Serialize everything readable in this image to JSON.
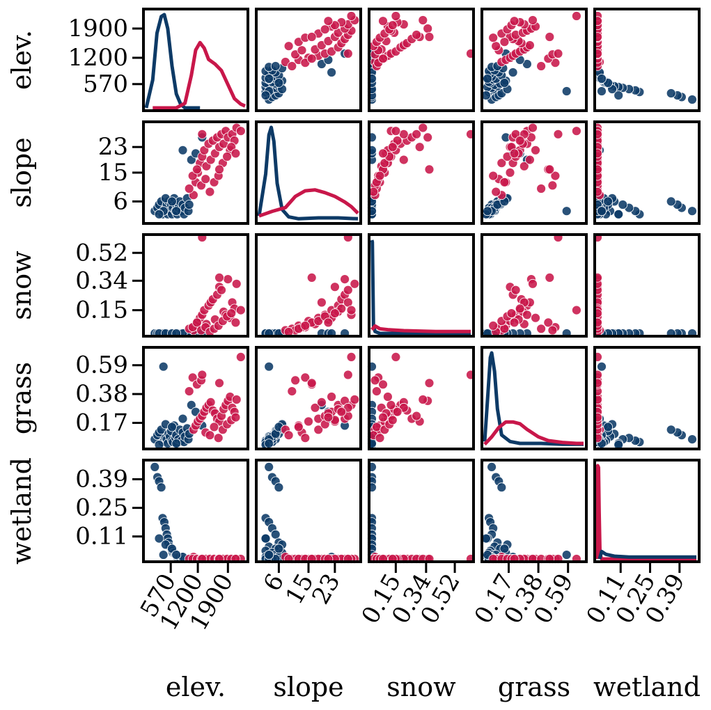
{
  "chart_data": {
    "type": "scatter",
    "variables": [
      "elev.",
      "slope",
      "snow",
      "grass",
      "wetland"
    ],
    "ranges": [
      [
        0,
        2300
      ],
      [
        0,
        30
      ],
      [
        0,
        0.62
      ],
      [
        0,
        0.7
      ],
      [
        0,
        0.47
      ]
    ],
    "ticks": [
      {
        "values": [
          570,
          1200,
          1900
        ],
        "labels": [
          "570",
          "1200",
          "1900"
        ]
      },
      {
        "values": [
          6,
          15,
          23
        ],
        "labels": [
          "6",
          "15",
          "23"
        ]
      },
      {
        "values": [
          0.15,
          0.34,
          0.52
        ],
        "labels": [
          "0.15",
          "0.34",
          "0.52"
        ]
      },
      {
        "values": [
          0.17,
          0.38,
          0.59
        ],
        "labels": [
          "0.17",
          "0.38",
          "0.59"
        ]
      },
      {
        "values": [
          0.11,
          0.25,
          0.39
        ],
        "labels": [
          "0.11",
          "0.25",
          "0.39"
        ]
      }
    ],
    "colors": {
      "group_a": "#0d3a66",
      "group_b": "#c8174a"
    },
    "groups": [
      {
        "color_key": "group_a",
        "points": [
          [
            200,
            3,
            0,
            0.05,
            0.45
          ],
          [
            260,
            4,
            0,
            0.08,
            0.4
          ],
          [
            300,
            5,
            0,
            0.1,
            0.38
          ],
          [
            350,
            6,
            0,
            0.12,
            0.35
          ],
          [
            380,
            2,
            0,
            0.03,
            0.2
          ],
          [
            420,
            3,
            0,
            0.04,
            0.18
          ],
          [
            450,
            4,
            0,
            0.06,
            0.15
          ],
          [
            480,
            5,
            0,
            0.05,
            0.12
          ],
          [
            500,
            2,
            0,
            0.02,
            0.1
          ],
          [
            520,
            6,
            0,
            0.09,
            0.08
          ],
          [
            550,
            3,
            0,
            0.07,
            0.06
          ],
          [
            580,
            5,
            0,
            0.11,
            0.05
          ],
          [
            600,
            2,
            0,
            0.04,
            0.04
          ],
          [
            620,
            4,
            0,
            0.03,
            0.03
          ],
          [
            650,
            7,
            0,
            0.15,
            0.03
          ],
          [
            680,
            3,
            0,
            0.06,
            0.02
          ],
          [
            700,
            5,
            0,
            0.08,
            0.02
          ],
          [
            720,
            2,
            0,
            0.02,
            0.01
          ],
          [
            750,
            4,
            0,
            0.05,
            0.01
          ],
          [
            780,
            6,
            0,
            0.12,
            0.01
          ],
          [
            820,
            3,
            0,
            0.04,
            0.01
          ],
          [
            850,
            5,
            0,
            0.1,
            0.0
          ],
          [
            880,
            2,
            0,
            0.03,
            0.0
          ],
          [
            900,
            4,
            0,
            0.07,
            0.0
          ],
          [
            950,
            7,
            0,
            0.13,
            0.0
          ],
          [
            980,
            3,
            0,
            0.05,
            0.0
          ],
          [
            1000,
            5,
            0,
            0.09,
            0.0
          ],
          [
            1050,
            19,
            0,
            0.3,
            0.0
          ],
          [
            1150,
            21,
            0,
            0.25,
            0.0
          ],
          [
            400,
            3,
            0,
            0.58,
            0.02
          ],
          [
            850,
            22,
            0,
            0.2,
            0.01
          ],
          [
            1300,
            26,
            0,
            0.15,
            0.0
          ],
          [
            300,
            2,
            0,
            0.01,
            0.1
          ],
          [
            450,
            7,
            0,
            0.16,
            0.07
          ],
          [
            600,
            6,
            0,
            0.14,
            0.05
          ],
          [
            700,
            3,
            0,
            0.02,
            0.02
          ]
        ]
      },
      {
        "color_key": "group_b",
        "points": [
          [
            1100,
            8,
            0.02,
            0.12,
            0.01
          ],
          [
            1150,
            12,
            0.05,
            0.15,
            0.0
          ],
          [
            1200,
            15,
            0.08,
            0.18,
            0.0
          ],
          [
            1250,
            18,
            0.1,
            0.2,
            0.0
          ],
          [
            1300,
            20,
            0.12,
            0.22,
            0.0
          ],
          [
            1350,
            22,
            0.15,
            0.25,
            0.0
          ],
          [
            1400,
            17,
            0.06,
            0.28,
            0.0
          ],
          [
            1450,
            24,
            0.18,
            0.3,
            0.0
          ],
          [
            1500,
            19,
            0.2,
            0.32,
            0.0
          ],
          [
            1550,
            25,
            0.22,
            0.26,
            0.0
          ],
          [
            1600,
            21,
            0.09,
            0.24,
            0.0
          ],
          [
            1650,
            26,
            0.25,
            0.2,
            0.0
          ],
          [
            1700,
            23,
            0.3,
            0.18,
            0.0
          ],
          [
            1750,
            27,
            0.28,
            0.22,
            0.0
          ],
          [
            1800,
            24,
            0.14,
            0.27,
            0.0
          ],
          [
            1850,
            28,
            0.12,
            0.3,
            0.0
          ],
          [
            1900,
            26,
            0.35,
            0.33,
            0.0
          ],
          [
            1950,
            22,
            0.1,
            0.36,
            0.0
          ],
          [
            2000,
            27,
            0.2,
            0.28,
            0.0
          ],
          [
            2050,
            25,
            0.16,
            0.25,
            0.0
          ],
          [
            2100,
            29,
            0.32,
            0.34,
            0.0
          ],
          [
            2200,
            28,
            0.15,
            0.65,
            0.0
          ],
          [
            1000,
            10,
            0.03,
            0.4,
            0.0
          ],
          [
            1080,
            14,
            0.04,
            0.5,
            0.0
          ],
          [
            1180,
            16,
            0.07,
            0.45,
            0.0
          ],
          [
            1280,
            11,
            0.02,
            0.48,
            0.0
          ],
          [
            1380,
            13,
            0.04,
            0.1,
            0.0
          ],
          [
            1480,
            9,
            0.01,
            0.08,
            0.0
          ],
          [
            1580,
            12,
            0.03,
            0.14,
            0.0
          ],
          [
            1680,
            14,
            0.05,
            0.06,
            0.0
          ],
          [
            1780,
            18,
            0.08,
            0.12,
            0.0
          ],
          [
            1880,
            20,
            0.11,
            0.16,
            0.0
          ],
          [
            1980,
            23,
            0.13,
            0.19,
            0.0
          ],
          [
            2080,
            21,
            0.07,
            0.21,
            0.0
          ],
          [
            1300,
            27,
            0.62,
            0.52,
            0.0
          ],
          [
            1700,
            16,
            0.36,
            0.46,
            0.0
          ]
        ]
      }
    ],
    "diagonal_density": [
      {
        "curves": [
          {
            "color_key": "group_a",
            "points": [
              [
                0,
                0.0
              ],
              [
                150,
                0.3
              ],
              [
                250,
                0.8
              ],
              [
                350,
                0.98
              ],
              [
                420,
                1.0
              ],
              [
                500,
                0.85
              ],
              [
                600,
                0.45
              ],
              [
                700,
                0.15
              ],
              [
                800,
                0.04
              ],
              [
                900,
                0.0
              ],
              [
                1250,
                0.0
              ]
            ]
          },
          {
            "color_key": "group_b",
            "points": [
              [
                150,
                0.0
              ],
              [
                700,
                0.0
              ],
              [
                900,
                0.05
              ],
              [
                1050,
                0.35
              ],
              [
                1150,
                0.62
              ],
              [
                1250,
                0.7
              ],
              [
                1350,
                0.64
              ],
              [
                1450,
                0.52
              ],
              [
                1600,
                0.47
              ],
              [
                1750,
                0.4
              ],
              [
                1900,
                0.25
              ],
              [
                2050,
                0.1
              ],
              [
                2200,
                0.04
              ],
              [
                2300,
                0.02
              ]
            ]
          }
        ]
      },
      {
        "curves": [
          {
            "color_key": "group_a",
            "points": [
              [
                0,
                0.05
              ],
              [
                2,
                0.5
              ],
              [
                3,
                0.92
              ],
              [
                3.7,
                1.0
              ],
              [
                4.5,
                0.85
              ],
              [
                5.5,
                0.4
              ],
              [
                7,
                0.12
              ],
              [
                9,
                0.04
              ],
              [
                12,
                0.02
              ],
              [
                18,
                0.03
              ],
              [
                24,
                0.03
              ],
              [
                30,
                0.02
              ]
            ]
          },
          {
            "color_key": "group_b",
            "points": [
              [
                0,
                0.05
              ],
              [
                4,
                0.1
              ],
              [
                8,
                0.14
              ],
              [
                11,
                0.26
              ],
              [
                14,
                0.32
              ],
              [
                17,
                0.33
              ],
              [
                20,
                0.3
              ],
              [
                23,
                0.26
              ],
              [
                26,
                0.2
              ],
              [
                28,
                0.15
              ],
              [
                30,
                0.08
              ]
            ]
          }
        ]
      },
      {
        "curves": [
          {
            "color_key": "group_a",
            "points": [
              [
                0,
                1.0
              ],
              [
                0.003,
                0.98
              ],
              [
                0.006,
                0.6
              ],
              [
                0.01,
                0.08
              ],
              [
                0.02,
                0.02
              ],
              [
                0.05,
                0.0
              ],
              [
                0.62,
                0.0
              ]
            ]
          },
          {
            "color_key": "group_b",
            "points": [
              [
                0,
                0.04
              ],
              [
                0.02,
                0.08
              ],
              [
                0.05,
                0.05
              ],
              [
                0.1,
                0.04
              ],
              [
                0.2,
                0.03
              ],
              [
                0.4,
                0.02
              ],
              [
                0.62,
                0.02
              ]
            ]
          }
        ]
      },
      {
        "curves": [
          {
            "color_key": "group_a",
            "points": [
              [
                0,
                0.05
              ],
              [
                0.02,
                0.5
              ],
              [
                0.04,
                0.95
              ],
              [
                0.05,
                1.0
              ],
              [
                0.07,
                0.8
              ],
              [
                0.09,
                0.4
              ],
              [
                0.12,
                0.12
              ],
              [
                0.18,
                0.05
              ],
              [
                0.25,
                0.03
              ],
              [
                0.4,
                0.03
              ],
              [
                0.55,
                0.02
              ],
              [
                0.7,
                0.02
              ]
            ]
          },
          {
            "color_key": "group_b",
            "points": [
              [
                0,
                0.02
              ],
              [
                0.05,
                0.1
              ],
              [
                0.1,
                0.2
              ],
              [
                0.15,
                0.26
              ],
              [
                0.2,
                0.26
              ],
              [
                0.25,
                0.24
              ],
              [
                0.3,
                0.18
              ],
              [
                0.38,
                0.1
              ],
              [
                0.45,
                0.06
              ],
              [
                0.55,
                0.04
              ],
              [
                0.65,
                0.03
              ],
              [
                0.7,
                0.03
              ]
            ]
          }
        ]
      },
      {
        "curves": [
          {
            "color_key": "group_b",
            "points": [
              [
                0,
                0.0
              ],
              [
                0.001,
                1.0
              ],
              [
                0.005,
                0.98
              ],
              [
                0.008,
                0.5
              ],
              [
                0.012,
                0.05
              ],
              [
                0.02,
                0.0
              ],
              [
                0.47,
                0.0
              ]
            ]
          },
          {
            "color_key": "group_a",
            "points": [
              [
                0.01,
                0.0
              ],
              [
                0.02,
                0.08
              ],
              [
                0.04,
                0.05
              ],
              [
                0.08,
                0.03
              ],
              [
                0.15,
                0.02
              ],
              [
                0.3,
                0.02
              ],
              [
                0.47,
                0.02
              ]
            ]
          }
        ]
      }
    ]
  }
}
